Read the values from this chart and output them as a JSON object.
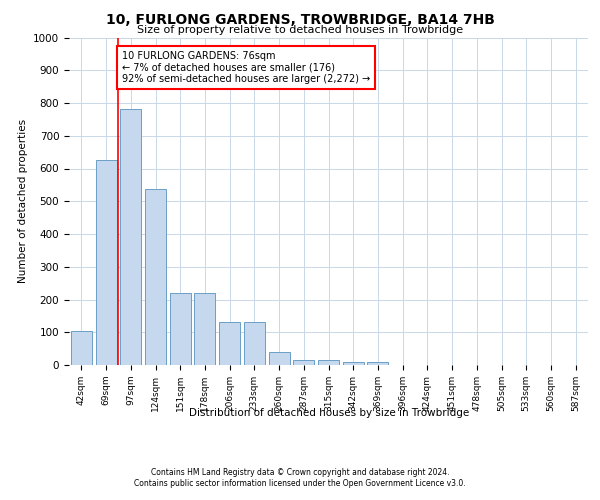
{
  "title": "10, FURLONG GARDENS, TROWBRIDGE, BA14 7HB",
  "subtitle": "Size of property relative to detached houses in Trowbridge",
  "xlabel": "Distribution of detached houses by size in Trowbridge",
  "ylabel": "Number of detached properties",
  "bar_color": "#c5d8ed",
  "bar_edge_color": "#6b9fc7",
  "categories": [
    "42sqm",
    "69sqm",
    "97sqm",
    "124sqm",
    "151sqm",
    "178sqm",
    "206sqm",
    "233sqm",
    "260sqm",
    "287sqm",
    "315sqm",
    "342sqm",
    "369sqm",
    "396sqm",
    "424sqm",
    "451sqm",
    "478sqm",
    "505sqm",
    "533sqm",
    "560sqm",
    "587sqm"
  ],
  "values": [
    103,
    625,
    783,
    537,
    220,
    220,
    132,
    132,
    40,
    15,
    15,
    10,
    10,
    0,
    0,
    0,
    0,
    0,
    0,
    0,
    0
  ],
  "ylim": [
    0,
    1000
  ],
  "yticks": [
    0,
    100,
    200,
    300,
    400,
    500,
    600,
    700,
    800,
    900,
    1000
  ],
  "property_line_x": 1.5,
  "annotation_text": "10 FURLONG GARDENS: 76sqm\n← 7% of detached houses are smaller (176)\n92% of semi-detached houses are larger (2,272) →",
  "annotation_box_color": "white",
  "annotation_box_edge": "red",
  "property_line_color": "red",
  "footer_line1": "Contains HM Land Registry data © Crown copyright and database right 2024.",
  "footer_line2": "Contains public sector information licensed under the Open Government Licence v3.0.",
  "background_color": "white",
  "grid_color": "#c8d8e8"
}
